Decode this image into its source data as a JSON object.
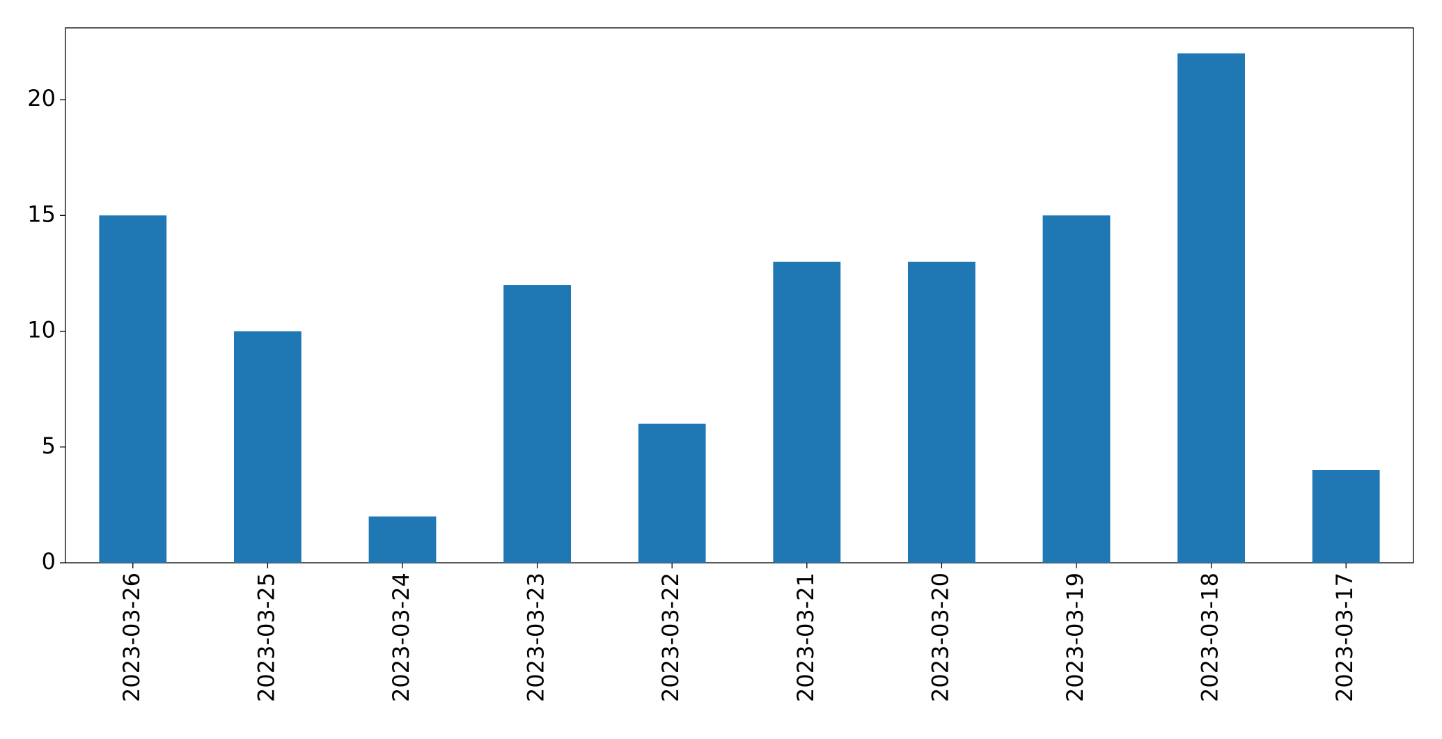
{
  "chart_data": {
    "type": "bar",
    "categories": [
      "2023-03-26",
      "2023-03-25",
      "2023-03-24",
      "2023-03-23",
      "2023-03-22",
      "2023-03-21",
      "2023-03-20",
      "2023-03-19",
      "2023-03-18",
      "2023-03-17"
    ],
    "values": [
      15,
      10,
      2,
      12,
      6,
      13,
      13,
      15,
      22,
      4
    ],
    "color": "#1f77b4",
    "ylim": [
      0,
      23.1
    ],
    "yticks": [
      0,
      5,
      10,
      15,
      20
    ],
    "grid": false
  }
}
